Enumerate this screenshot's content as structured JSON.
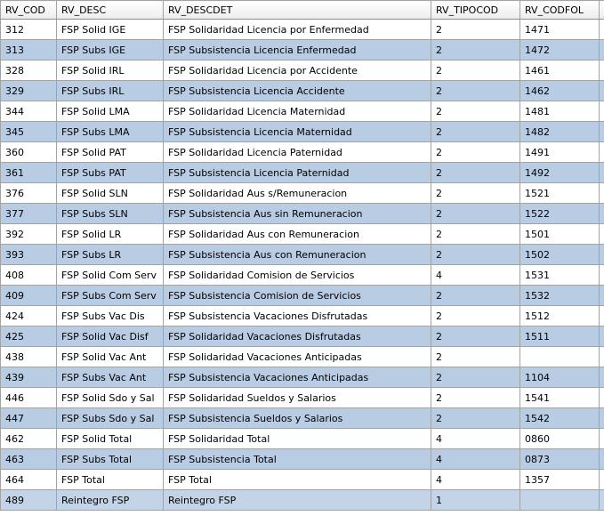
{
  "table": {
    "columns": [
      "RV_COD",
      "RV_DESC",
      "RV_DESCDET",
      "RV_TIPOCOD",
      "RV_CODFOL"
    ],
    "rows": [
      [
        "312",
        "FSP Solid IGE",
        "FSP Solidaridad Licencia por Enfermedad",
        "2",
        "1471"
      ],
      [
        "313",
        "FSP Subs IGE",
        "FSP Subsistencia Licencia Enfermedad",
        "2",
        "1472"
      ],
      [
        "328",
        "FSP Solid IRL",
        "FSP Solidaridad Licencia por Accidente",
        "2",
        "1461"
      ],
      [
        "329",
        "FSP Subs IRL",
        "FSP Subsistencia Licencia Accidente",
        "2",
        "1462"
      ],
      [
        "344",
        "FSP Solid LMA",
        "FSP Solidaridad Licencia Maternidad",
        "2",
        "1481"
      ],
      [
        "345",
        "FSP Subs LMA",
        "FSP Subsistencia Licencia Maternidad",
        "2",
        "1482"
      ],
      [
        "360",
        "FSP Solid PAT",
        "FSP Solidaridad Licencia Paternidad",
        "2",
        "1491"
      ],
      [
        "361",
        "FSP Subs PAT",
        "FSP Subsistencia Licencia Paternidad",
        "2",
        "1492"
      ],
      [
        "376",
        "FSP Solid SLN",
        "FSP Solidaridad Aus s/Remuneracion",
        "2",
        "1521"
      ],
      [
        "377",
        "FSP Subs SLN",
        "FSP Subsistencia Aus sin Remuneracion",
        "2",
        "1522"
      ],
      [
        "392",
        "FSP Solid LR",
        "FSP Solidaridad Aus con Remuneracion",
        "2",
        "1501"
      ],
      [
        "393",
        "FSP Subs LR",
        "FSP Subsistencia Aus con Remuneracion",
        "2",
        "1502"
      ],
      [
        "408",
        "FSP Solid Com Serv",
        "FSP Solidaridad Comision de Servicios",
        "4",
        "1531"
      ],
      [
        "409",
        "FSP Subs Com Serv",
        "FSP Subsistencia Comision de Servicios",
        "2",
        "1532"
      ],
      [
        "424",
        "FSP Subs Vac Dis",
        "FSP Subsistencia Vacaciones Disfrutadas",
        "2",
        "1512"
      ],
      [
        "425",
        "FSP Solid Vac Disf",
        "FSP Solidaridad Vacaciones Disfrutadas",
        "2",
        "1511"
      ],
      [
        "438",
        "FSP Solid Vac Ant",
        "FSP Solidaridad Vacaciones Anticipadas",
        "2",
        null
      ],
      [
        "439",
        "FSP Subs Vac Ant",
        "FSP Subsistencia Vacaciones Anticipadas",
        "2",
        "1104"
      ],
      [
        "446",
        "FSP Solid Sdo y Sal",
        "FSP Solidaridad Sueldos y Salarios",
        "2",
        "1541"
      ],
      [
        "447",
        "FSP Subs Sdo y Sal",
        "FSP Subsistencia Sueldos y Salarios",
        "2",
        "1542"
      ],
      [
        "462",
        "FSP Solid Total",
        "FSP Solidaridad Total",
        "4",
        "0860"
      ],
      [
        "463",
        "FSP Subs Total",
        "FSP Subsistencia Total",
        "4",
        "0873"
      ],
      [
        "464",
        "FSP Total",
        "FSP Total",
        "4",
        "1357"
      ],
      [
        "489",
        "Reintegro FSP",
        "Reintegro FSP",
        "1",
        null
      ]
    ]
  }
}
